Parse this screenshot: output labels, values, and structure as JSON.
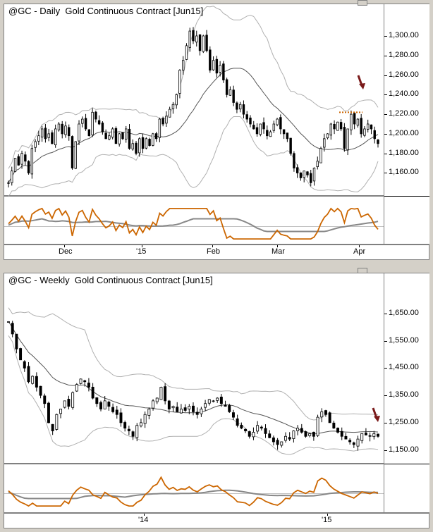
{
  "chart_data": [
    {
      "type": "candlestick",
      "title": "@GC - Daily  Gold Continuous Contract [Jun15]",
      "y_ticks": [
        "1,300.00",
        "1,280.00",
        "1,260.00",
        "1,240.00",
        "1,220.00",
        "1,200.00",
        "1,180.00",
        "1,160.00"
      ],
      "y_tick_values": [
        1300,
        1280,
        1260,
        1240,
        1220,
        1200,
        1180,
        1160
      ],
      "ylim": [
        1138,
        1318
      ],
      "x_ticks": [
        "Dec",
        "'15",
        "Feb",
        "Mar",
        "Apr"
      ],
      "closes": [
        1150,
        1162,
        1175,
        1168,
        1180,
        1172,
        1160,
        1185,
        1192,
        1198,
        1205,
        1195,
        1200,
        1190,
        1205,
        1210,
        1200,
        1208,
        1198,
        1165,
        1192,
        1210,
        1215,
        1205,
        1198,
        1222,
        1215,
        1210,
        1202,
        1195,
        1198,
        1205,
        1190,
        1200,
        1195,
        1205,
        1185,
        1190,
        1180,
        1195,
        1185,
        1195,
        1188,
        1200,
        1195,
        1215,
        1210,
        1218,
        1225,
        1230,
        1240,
        1265,
        1275,
        1290,
        1305,
        1295,
        1300,
        1285,
        1300,
        1285,
        1265,
        1275,
        1262,
        1270,
        1255,
        1240,
        1245,
        1232,
        1225,
        1230,
        1220,
        1215,
        1210,
        1205,
        1200,
        1210,
        1205,
        1198,
        1202,
        1210,
        1215,
        1205,
        1200,
        1195,
        1180,
        1165,
        1160,
        1155,
        1162,
        1158,
        1150,
        1165,
        1172,
        1185,
        1195,
        1200,
        1210,
        1205,
        1212,
        1205,
        1185,
        1205,
        1220,
        1210,
        1215,
        1200,
        1205,
        1210,
        1205,
        1195,
        1190
      ],
      "bollinger": "20-period moving average with upper and lower bands",
      "oscillator_lines": [
        "orange",
        "gray"
      ],
      "annotation": "arrow pointing down at recent high near 1,222.00"
    },
    {
      "type": "candlestick",
      "title": "@GC - Weekly  Gold Continuous Contract [Jun15]",
      "y_ticks": [
        "1,650.00",
        "1,550.00",
        "1,450.00",
        "1,350.00",
        "1,250.00",
        "1,150.00"
      ],
      "y_tick_values": [
        1650,
        1550,
        1450,
        1350,
        1250,
        1150
      ],
      "ylim": [
        1100,
        1740
      ],
      "x_ticks": [
        "'14",
        "'15"
      ],
      "closes": [
        1620,
        1575,
        1520,
        1480,
        1450,
        1400,
        1420,
        1380,
        1350,
        1320,
        1250,
        1220,
        1280,
        1300,
        1330,
        1310,
        1360,
        1390,
        1410,
        1400,
        1380,
        1340,
        1320,
        1300,
        1330,
        1310,
        1290,
        1280,
        1250,
        1230,
        1220,
        1200,
        1240,
        1250,
        1280,
        1300,
        1330,
        1340,
        1380,
        1330,
        1300,
        1310,
        1290,
        1300,
        1295,
        1310,
        1290,
        1280,
        1300,
        1320,
        1335,
        1330,
        1340,
        1320,
        1310,
        1290,
        1270,
        1240,
        1230,
        1220,
        1200,
        1215,
        1240,
        1230,
        1210,
        1195,
        1180,
        1170,
        1180,
        1200,
        1190,
        1220,
        1230,
        1215,
        1200,
        1210,
        1200,
        1270,
        1290,
        1280,
        1250,
        1230,
        1215,
        1200,
        1190,
        1180,
        1170,
        1190,
        1210,
        1205,
        1200,
        1210,
        1200
      ],
      "bollinger": "20-period moving average with upper and lower bands",
      "oscillator_lines": [
        "orange",
        "gray"
      ],
      "annotation": "arrow pointing down near 1,225.00"
    }
  ],
  "colors": {
    "candle": "#000000",
    "band": "#b0b0b0",
    "ma": "#555555",
    "osc_orange": "#cc6600",
    "osc_gray": "#888888",
    "arrow": "#7a1a1a",
    "dotted": "#cc6600",
    "bg": "#ffffff",
    "frame": "#d4d0c8"
  }
}
